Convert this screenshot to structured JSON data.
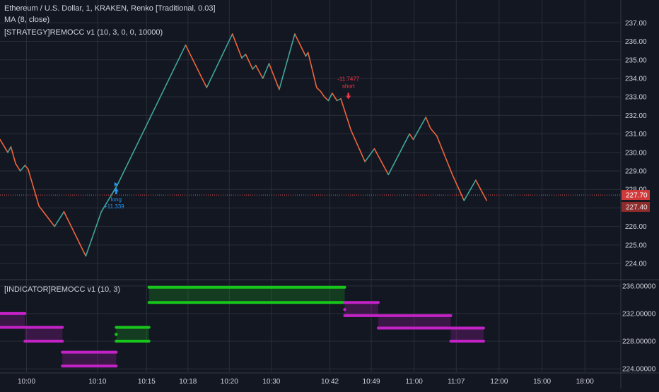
{
  "legend": {
    "symbol_line": "Ethereum / U.S. Dollar, 1, KRAKEN, Renko [Traditional, 0.03]",
    "ma_line": "MA (8, close)",
    "strategy_line": "[STRATEGY]REMOCC v1 (10, 3, 0, 0, 10000)",
    "indicator_line": "[INDICATOR]REMOCC v1 (10, 3)"
  },
  "colors": {
    "background": "#131722",
    "grid": "#2a2e39",
    "up": "#3fa79b",
    "down": "#f0643b",
    "long_signal": "#2196f3",
    "short_signal": "#f23645",
    "ind_green": "#18c51a",
    "ind_magenta": "#c322c6",
    "price_line": "#ef5350"
  },
  "chart_data": [
    {
      "type": "line",
      "title": "Ethereum / U.S. Dollar, 1, KRAKEN, Renko [Traditional, 0.03]",
      "x_ticks": [
        {
          "t": 3.4,
          "label": "10:00"
        },
        {
          "t": 12.5,
          "label": "10:10"
        },
        {
          "t": 18.8,
          "label": "10:15"
        },
        {
          "t": 24.1,
          "label": "10:18"
        },
        {
          "t": 29.4,
          "label": "10:20"
        },
        {
          "t": 34.8,
          "label": "10:30"
        },
        {
          "t": 42.3,
          "label": "10:42"
        },
        {
          "t": 47.6,
          "label": "10:49"
        },
        {
          "t": 53.1,
          "label": "11:00"
        },
        {
          "t": 58.5,
          "label": "11:07"
        },
        {
          "t": 64.0,
          "label": "12:00"
        },
        {
          "t": 69.5,
          "label": "15:00"
        },
        {
          "t": 75.0,
          "label": "18:00"
        }
      ],
      "y_ticks": [
        224,
        225,
        226,
        227,
        228,
        229,
        230,
        231,
        232,
        233,
        234,
        235,
        236,
        237
      ],
      "ylim": [
        223.2,
        237.7
      ],
      "xlim": [
        0,
        79.6
      ],
      "grid": true,
      "series": [
        {
          "name": "MA (8, close)",
          "points": [
            [
              0,
              230.7
            ],
            [
              1.0,
              230.0
            ],
            [
              1.4,
              230.3
            ],
            [
              2.0,
              229.4
            ],
            [
              2.6,
              229.0
            ],
            [
              3.2,
              229.3
            ],
            [
              3.6,
              229.1
            ],
            [
              5.0,
              227.1
            ],
            [
              7.0,
              226.0
            ],
            [
              8.2,
              226.8
            ],
            [
              11.0,
              224.4
            ],
            [
              13.0,
              226.8
            ],
            [
              15.0,
              228.2
            ],
            [
              23.8,
              235.8
            ],
            [
              26.5,
              233.5
            ],
            [
              29.8,
              236.4
            ],
            [
              31.0,
              235.1
            ],
            [
              31.5,
              235.3
            ],
            [
              32.4,
              234.5
            ],
            [
              32.8,
              234.7
            ],
            [
              33.7,
              234.0
            ],
            [
              34.5,
              234.8
            ],
            [
              35.8,
              233.4
            ],
            [
              37.8,
              236.4
            ],
            [
              39.2,
              235.2
            ],
            [
              39.5,
              235.4
            ],
            [
              40.6,
              233.5
            ],
            [
              41.1,
              233.3
            ],
            [
              41.6,
              233.0
            ],
            [
              42.1,
              232.8
            ],
            [
              42.6,
              233.2
            ],
            [
              43.2,
              232.8
            ],
            [
              43.7,
              232.9
            ],
            [
              45.0,
              231.2
            ],
            [
              46.8,
              229.5
            ],
            [
              48.0,
              230.2
            ],
            [
              49.8,
              228.8
            ],
            [
              52.5,
              231.0
            ],
            [
              53.0,
              230.7
            ],
            [
              54.6,
              231.9
            ],
            [
              55.2,
              231.3
            ],
            [
              55.6,
              231.1
            ],
            [
              56.0,
              230.9
            ],
            [
              58.0,
              228.8
            ],
            [
              59.5,
              227.4
            ],
            [
              61.0,
              228.5
            ],
            [
              62.4,
              227.4
            ]
          ]
        }
      ],
      "signals": [
        {
          "t": 14.9,
          "price": 227.9,
          "direction": "long",
          "label": "long",
          "value": "+11.339"
        },
        {
          "t": 44.4,
          "price": 233.1,
          "direction": "short",
          "label": "short",
          "value": "-11.7477"
        }
      ],
      "current_price": {
        "label": "227.70",
        "value": 227.7
      },
      "secondary_price": {
        "label": "227.40",
        "value": 227.4
      }
    },
    {
      "type": "line",
      "title": "[INDICATOR]REMOCC v1 (10, 3)",
      "y_ticks": [
        {
          "value": 224,
          "label": "224.00000"
        },
        {
          "value": 228,
          "label": "228.00000"
        },
        {
          "value": 232,
          "label": "232.00000"
        },
        {
          "value": 236,
          "label": "236.00000"
        }
      ],
      "ylim": [
        223.5,
        236.7
      ],
      "xlim": [
        0,
        79.6
      ],
      "grid": true,
      "segments": [
        {
          "t0": 0,
          "t1": 3.2,
          "top": 232.0,
          "bottom": 230.0,
          "color": "magenta"
        },
        {
          "t0": 3.2,
          "t1": 8.0,
          "top": 230.0,
          "bottom": 228.0,
          "color": "magenta"
        },
        {
          "t0": 8.0,
          "t1": 14.9,
          "top": 226.4,
          "bottom": 224.4,
          "color": "magenta"
        },
        {
          "t0": 14.9,
          "t1": 19.1,
          "top": 230.0,
          "bottom": 228.0,
          "color": "green"
        },
        {
          "t0": 19.1,
          "t1": 44.2,
          "top": 235.8,
          "bottom": 233.6,
          "color": "green"
        },
        {
          "t0": 44.2,
          "t1": 48.5,
          "top": 233.6,
          "bottom": 231.7,
          "color": "magenta"
        },
        {
          "t0": 48.5,
          "t1": 57.8,
          "top": 231.7,
          "bottom": 229.9,
          "color": "magenta"
        },
        {
          "t0": 57.8,
          "t1": 62.0,
          "top": 229.9,
          "bottom": 228.0,
          "color": "magenta"
        }
      ]
    }
  ]
}
